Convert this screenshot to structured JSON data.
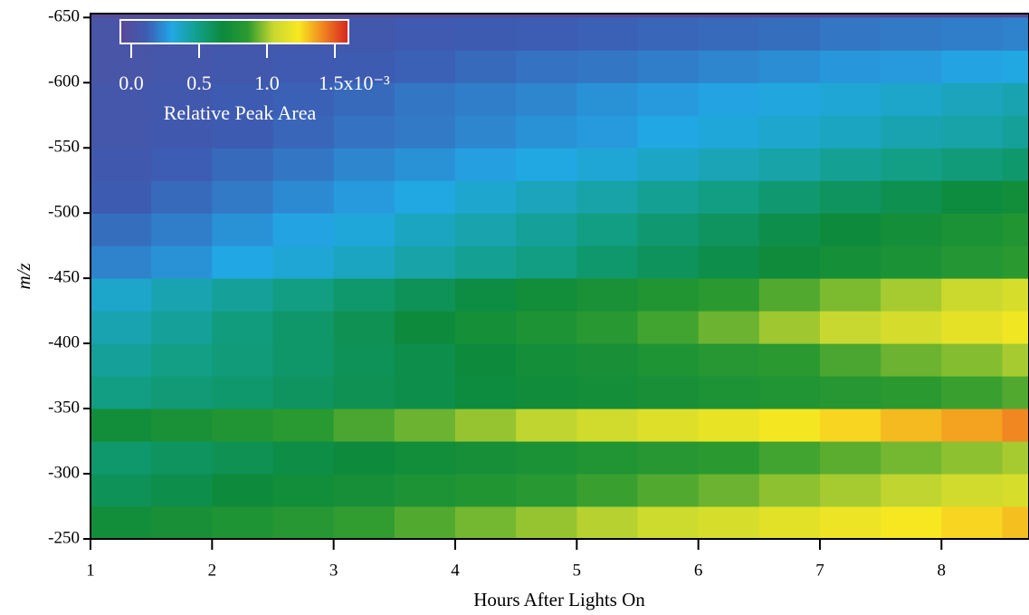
{
  "chart_data": {
    "type": "heatmap",
    "x_label": "Hours After Lights On",
    "y_label": "m/z",
    "xlim": [
      1,
      8.72
    ],
    "xticks": [
      1,
      2,
      3,
      4,
      5,
      6,
      7,
      8
    ],
    "ylim": [
      -250,
      -653
    ],
    "yticks": [
      -650,
      -600,
      -550,
      -500,
      -450,
      -400,
      -350,
      -300,
      -250
    ],
    "xbins": [
      1,
      1.5,
      2,
      2.5,
      3,
      3.5,
      4,
      4.5,
      5,
      5.5,
      6,
      6.5,
      7,
      7.5,
      8,
      8.5,
      8.72
    ],
    "ybins": [
      -250,
      -275,
      -300,
      -325,
      -350,
      -375,
      -400,
      -425,
      -450,
      -475,
      -500,
      -525,
      -550,
      -575,
      -600,
      -625,
      -650
    ],
    "z": [
      [
        0.7,
        0.74,
        0.78,
        0.82,
        0.86,
        0.9,
        0.94,
        0.98,
        1.02,
        1.06,
        1.1,
        1.14,
        1.18,
        1.22,
        1.26,
        1.3
      ],
      [
        0.6,
        0.63,
        0.67,
        0.7,
        0.73,
        0.77,
        0.8,
        0.83,
        0.87,
        0.9,
        0.93,
        0.97,
        1.0,
        1.03,
        1.07,
        1.1
      ],
      [
        0.55,
        0.58,
        0.61,
        0.64,
        0.67,
        0.7,
        0.73,
        0.76,
        0.79,
        0.82,
        0.85,
        0.88,
        0.91,
        0.94,
        0.97,
        1.0
      ],
      [
        0.7,
        0.75,
        0.79,
        0.84,
        0.89,
        0.93,
        0.98,
        1.03,
        1.07,
        1.12,
        1.17,
        1.21,
        1.26,
        1.31,
        1.35,
        1.4
      ],
      [
        0.5,
        0.53,
        0.55,
        0.58,
        0.61,
        0.63,
        0.66,
        0.69,
        0.71,
        0.74,
        0.77,
        0.79,
        0.82,
        0.85,
        0.87,
        0.9
      ],
      [
        0.45,
        0.49,
        0.52,
        0.56,
        0.6,
        0.63,
        0.67,
        0.71,
        0.74,
        0.78,
        0.82,
        0.85,
        0.89,
        0.93,
        0.96,
        1.0
      ],
      [
        0.4,
        0.45,
        0.51,
        0.56,
        0.61,
        0.67,
        0.72,
        0.77,
        0.83,
        0.88,
        0.93,
        0.99,
        1.04,
        1.09,
        1.15,
        1.2
      ],
      [
        0.35,
        0.4,
        0.45,
        0.5,
        0.55,
        0.6,
        0.65,
        0.7,
        0.75,
        0.8,
        0.85,
        0.9,
        0.95,
        1.0,
        1.05,
        1.1
      ],
      [
        0.2,
        0.24,
        0.29,
        0.33,
        0.37,
        0.42,
        0.46,
        0.5,
        0.55,
        0.59,
        0.63,
        0.68,
        0.72,
        0.76,
        0.81,
        0.85
      ],
      [
        0.15,
        0.19,
        0.24,
        0.28,
        0.32,
        0.37,
        0.41,
        0.45,
        0.5,
        0.54,
        0.58,
        0.63,
        0.67,
        0.71,
        0.76,
        0.8
      ],
      [
        0.1,
        0.14,
        0.18,
        0.22,
        0.26,
        0.3,
        0.34,
        0.38,
        0.42,
        0.46,
        0.5,
        0.54,
        0.58,
        0.62,
        0.66,
        0.7
      ],
      [
        0.08,
        0.11,
        0.14,
        0.17,
        0.21,
        0.24,
        0.27,
        0.3,
        0.33,
        0.36,
        0.39,
        0.42,
        0.46,
        0.49,
        0.52,
        0.55
      ],
      [
        0.05,
        0.08,
        0.1,
        0.13,
        0.16,
        0.18,
        0.21,
        0.24,
        0.26,
        0.29,
        0.32,
        0.34,
        0.37,
        0.4,
        0.42,
        0.45
      ],
      [
        0.05,
        0.07,
        0.1,
        0.12,
        0.14,
        0.17,
        0.19,
        0.21,
        0.24,
        0.26,
        0.28,
        0.31,
        0.33,
        0.35,
        0.38,
        0.4
      ],
      [
        0.03,
        0.05,
        0.07,
        0.09,
        0.1,
        0.12,
        0.14,
        0.16,
        0.17,
        0.19,
        0.21,
        0.23,
        0.25,
        0.26,
        0.28,
        0.3
      ],
      [
        0.03,
        0.04,
        0.05,
        0.06,
        0.07,
        0.09,
        0.1,
        0.11,
        0.12,
        0.13,
        0.14,
        0.15,
        0.17,
        0.18,
        0.19,
        0.2
      ]
    ],
    "colorbar": {
      "title": "Relative Peak Area",
      "clim": [
        -0.08,
        1.6
      ],
      "ticks": [
        {
          "value": 0,
          "label": "0.0"
        },
        0.5,
        {
          "value": 1,
          "label": "1.0"
        },
        {
          "value": 1.5,
          "label": "1.5x10⁻³"
        }
      ],
      "colormap": [
        "#5b4a98",
        "#3c5cb2",
        "#22a8e6",
        "#12a08a",
        "#0d8a3c",
        "#2b9a30",
        "#c8d830",
        "#f8e820",
        "#f08020",
        "#d42020"
      ]
    }
  }
}
